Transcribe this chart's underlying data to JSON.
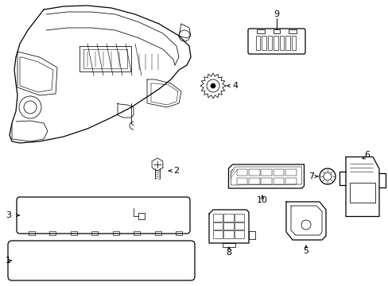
{
  "background_color": "#ffffff",
  "line_color": "#000000",
  "lw": 0.9,
  "tlw": 0.55,
  "figsize": [
    4.89,
    3.6
  ],
  "dpi": 100
}
